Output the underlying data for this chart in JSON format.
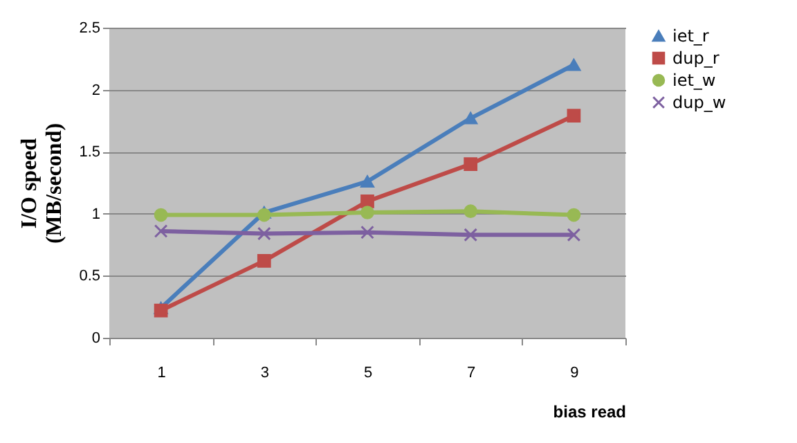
{
  "chart_data": {
    "type": "line",
    "xlabel": "bias read",
    "ylabel": "I/O speed\n(MB/second)",
    "categories": [
      "1",
      "3",
      "5",
      "7",
      "9"
    ],
    "ylim": [
      0,
      2.5
    ],
    "yticks": [
      0,
      0.5,
      1,
      1.5,
      2,
      2.5
    ],
    "grid": "y",
    "legend": "right",
    "series": [
      {
        "name": "iet_r",
        "color": "#4a7ebb",
        "marker": "triangle",
        "values": [
          0.24,
          1.01,
          1.26,
          1.77,
          2.2
        ]
      },
      {
        "name": "dup_r",
        "color": "#be4b48",
        "marker": "square",
        "values": [
          0.22,
          0.62,
          1.1,
          1.4,
          1.79
        ]
      },
      {
        "name": "iet_w",
        "color": "#98b954",
        "marker": "circle",
        "values": [
          0.99,
          0.99,
          1.01,
          1.02,
          0.99
        ]
      },
      {
        "name": "dup_w",
        "color": "#7d60a0",
        "marker": "cross",
        "values": [
          0.86,
          0.84,
          0.85,
          0.83,
          0.83
        ]
      }
    ]
  }
}
